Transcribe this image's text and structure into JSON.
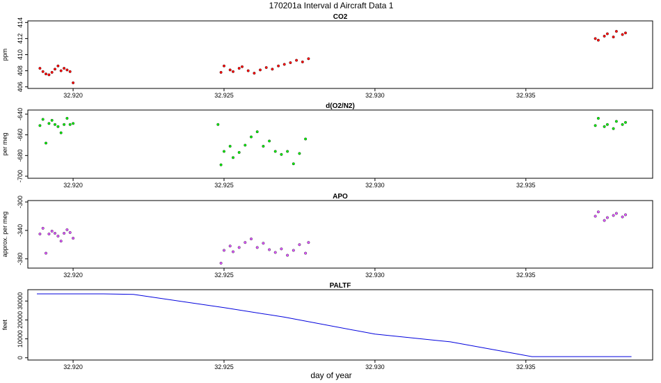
{
  "title": "170201a   Interval d Aircraft Data 1",
  "xlabel": "day of year",
  "chart_data": [
    {
      "type": "scatter",
      "title": "CO2",
      "ylabel": "ppm",
      "xlim": [
        32.9185,
        32.9392
      ],
      "ylim": [
        405.8,
        414.2
      ],
      "yticks": [
        406,
        408,
        410,
        412,
        414
      ],
      "xticks": [
        32.92,
        32.925,
        32.93,
        32.935
      ],
      "xtick_labels": [
        "32.920",
        "32.925",
        "32.930",
        "32.935"
      ],
      "color": "#ff0000",
      "series": [
        {
          "x": [
            32.9189,
            32.919,
            32.9191,
            32.9192,
            32.9193,
            32.9194,
            32.9195,
            32.9196,
            32.9197,
            32.9198,
            32.9199,
            32.92,
            32.9249,
            32.925,
            32.9252,
            32.9253,
            32.9255,
            32.9256,
            32.9258,
            32.926,
            32.9262,
            32.9264,
            32.9266,
            32.9268,
            32.927,
            32.9272,
            32.9274,
            32.9276,
            32.9278,
            32.9373,
            32.9374,
            32.9376,
            32.9377,
            32.9379,
            32.938,
            32.9382,
            32.9383
          ],
          "y": [
            408.3,
            407.9,
            407.6,
            407.5,
            407.8,
            408.2,
            408.6,
            408.0,
            408.3,
            408.1,
            407.9,
            406.5,
            407.8,
            408.6,
            408.1,
            407.9,
            408.3,
            408.5,
            408.0,
            407.7,
            408.1,
            408.4,
            408.2,
            408.6,
            408.8,
            409.0,
            409.3,
            409.1,
            409.5,
            412.0,
            411.8,
            412.3,
            412.6,
            412.2,
            412.9,
            412.5,
            412.7
          ]
        }
      ]
    },
    {
      "type": "scatter",
      "title": "d(O2/N2)",
      "ylabel": "per meg",
      "xlim": [
        32.9185,
        32.9392
      ],
      "ylim": [
        -702,
        -636
      ],
      "yticks": [
        -700,
        -680,
        -660,
        -640
      ],
      "xticks": [
        32.92,
        32.925,
        32.93,
        32.935
      ],
      "xtick_labels": [
        "32.920",
        "32.925",
        "32.930",
        "32.935"
      ],
      "color": "#00ee00",
      "series": [
        {
          "x": [
            32.9189,
            32.919,
            32.9191,
            32.9192,
            32.9193,
            32.9194,
            32.9195,
            32.9196,
            32.9197,
            32.9198,
            32.9199,
            32.92,
            32.9248,
            32.9249,
            32.925,
            32.9252,
            32.9253,
            32.9255,
            32.9257,
            32.9259,
            32.9261,
            32.9263,
            32.9265,
            32.9267,
            32.9269,
            32.9271,
            32.9273,
            32.9275,
            32.9277,
            32.9373,
            32.9374,
            32.9376,
            32.9377,
            32.9379,
            32.938,
            32.9382,
            32.9383
          ],
          "y": [
            -651,
            -645,
            -668,
            -649,
            -646,
            -650,
            -652,
            -658,
            -650,
            -644,
            -650,
            -649,
            -650,
            -689,
            -676,
            -671,
            -682,
            -677,
            -670,
            -662,
            -657,
            -671,
            -666,
            -676,
            -679,
            -676,
            -688,
            -678,
            -664,
            -651,
            -644,
            -652,
            -650,
            -654,
            -647,
            -650,
            -648
          ]
        }
      ]
    },
    {
      "type": "scatter",
      "title": "APO",
      "ylabel": "approx. per meg",
      "xlim": [
        32.9185,
        32.9392
      ],
      "ylim": [
        -393,
        -298
      ],
      "yticks": [
        -380,
        -340,
        -300
      ],
      "xticks": [
        32.92,
        32.925,
        32.93,
        32.935
      ],
      "xtick_labels": [
        "32.920",
        "32.925",
        "32.930",
        "32.935"
      ],
      "color": "#dd55ff",
      "series": [
        {
          "x": [
            32.9189,
            32.919,
            32.9191,
            32.9192,
            32.9193,
            32.9194,
            32.9195,
            32.9196,
            32.9197,
            32.9198,
            32.9199,
            32.92,
            32.9249,
            32.925,
            32.9252,
            32.9253,
            32.9255,
            32.9257,
            32.9259,
            32.9261,
            32.9263,
            32.9265,
            32.9267,
            32.9269,
            32.9271,
            32.9273,
            32.9275,
            32.9277,
            32.9278,
            32.9373,
            32.9374,
            32.9376,
            32.9377,
            32.9379,
            32.938,
            32.9382,
            32.9383
          ],
          "y": [
            -345,
            -337,
            -372,
            -345,
            -341,
            -344,
            -348,
            -355,
            -344,
            -339,
            -343,
            -351,
            -386,
            -368,
            -362,
            -370,
            -364,
            -357,
            -352,
            -364,
            -358,
            -367,
            -371,
            -366,
            -375,
            -368,
            -360,
            -372,
            -357,
            -320,
            -314,
            -326,
            -322,
            -319,
            -316,
            -321,
            -318
          ]
        }
      ]
    },
    {
      "type": "line",
      "title": "PALTF",
      "ylabel": "feet",
      "xlim": [
        32.9185,
        32.9392
      ],
      "ylim": [
        -1200,
        36000
      ],
      "yticks": [
        0,
        10000,
        20000,
        30000
      ],
      "xticks": [
        32.92,
        32.925,
        32.93,
        32.935
      ],
      "xtick_labels": [
        "32.920",
        "32.925",
        "32.930",
        "32.935"
      ],
      "color": "#0000dd",
      "series": [
        {
          "x": [
            32.9188,
            32.921,
            32.922,
            32.925,
            32.927,
            32.93,
            32.9325,
            32.9352,
            32.9385
          ],
          "y": [
            33800,
            33800,
            33500,
            26500,
            21500,
            12500,
            8400,
            600,
            600
          ]
        }
      ]
    }
  ]
}
